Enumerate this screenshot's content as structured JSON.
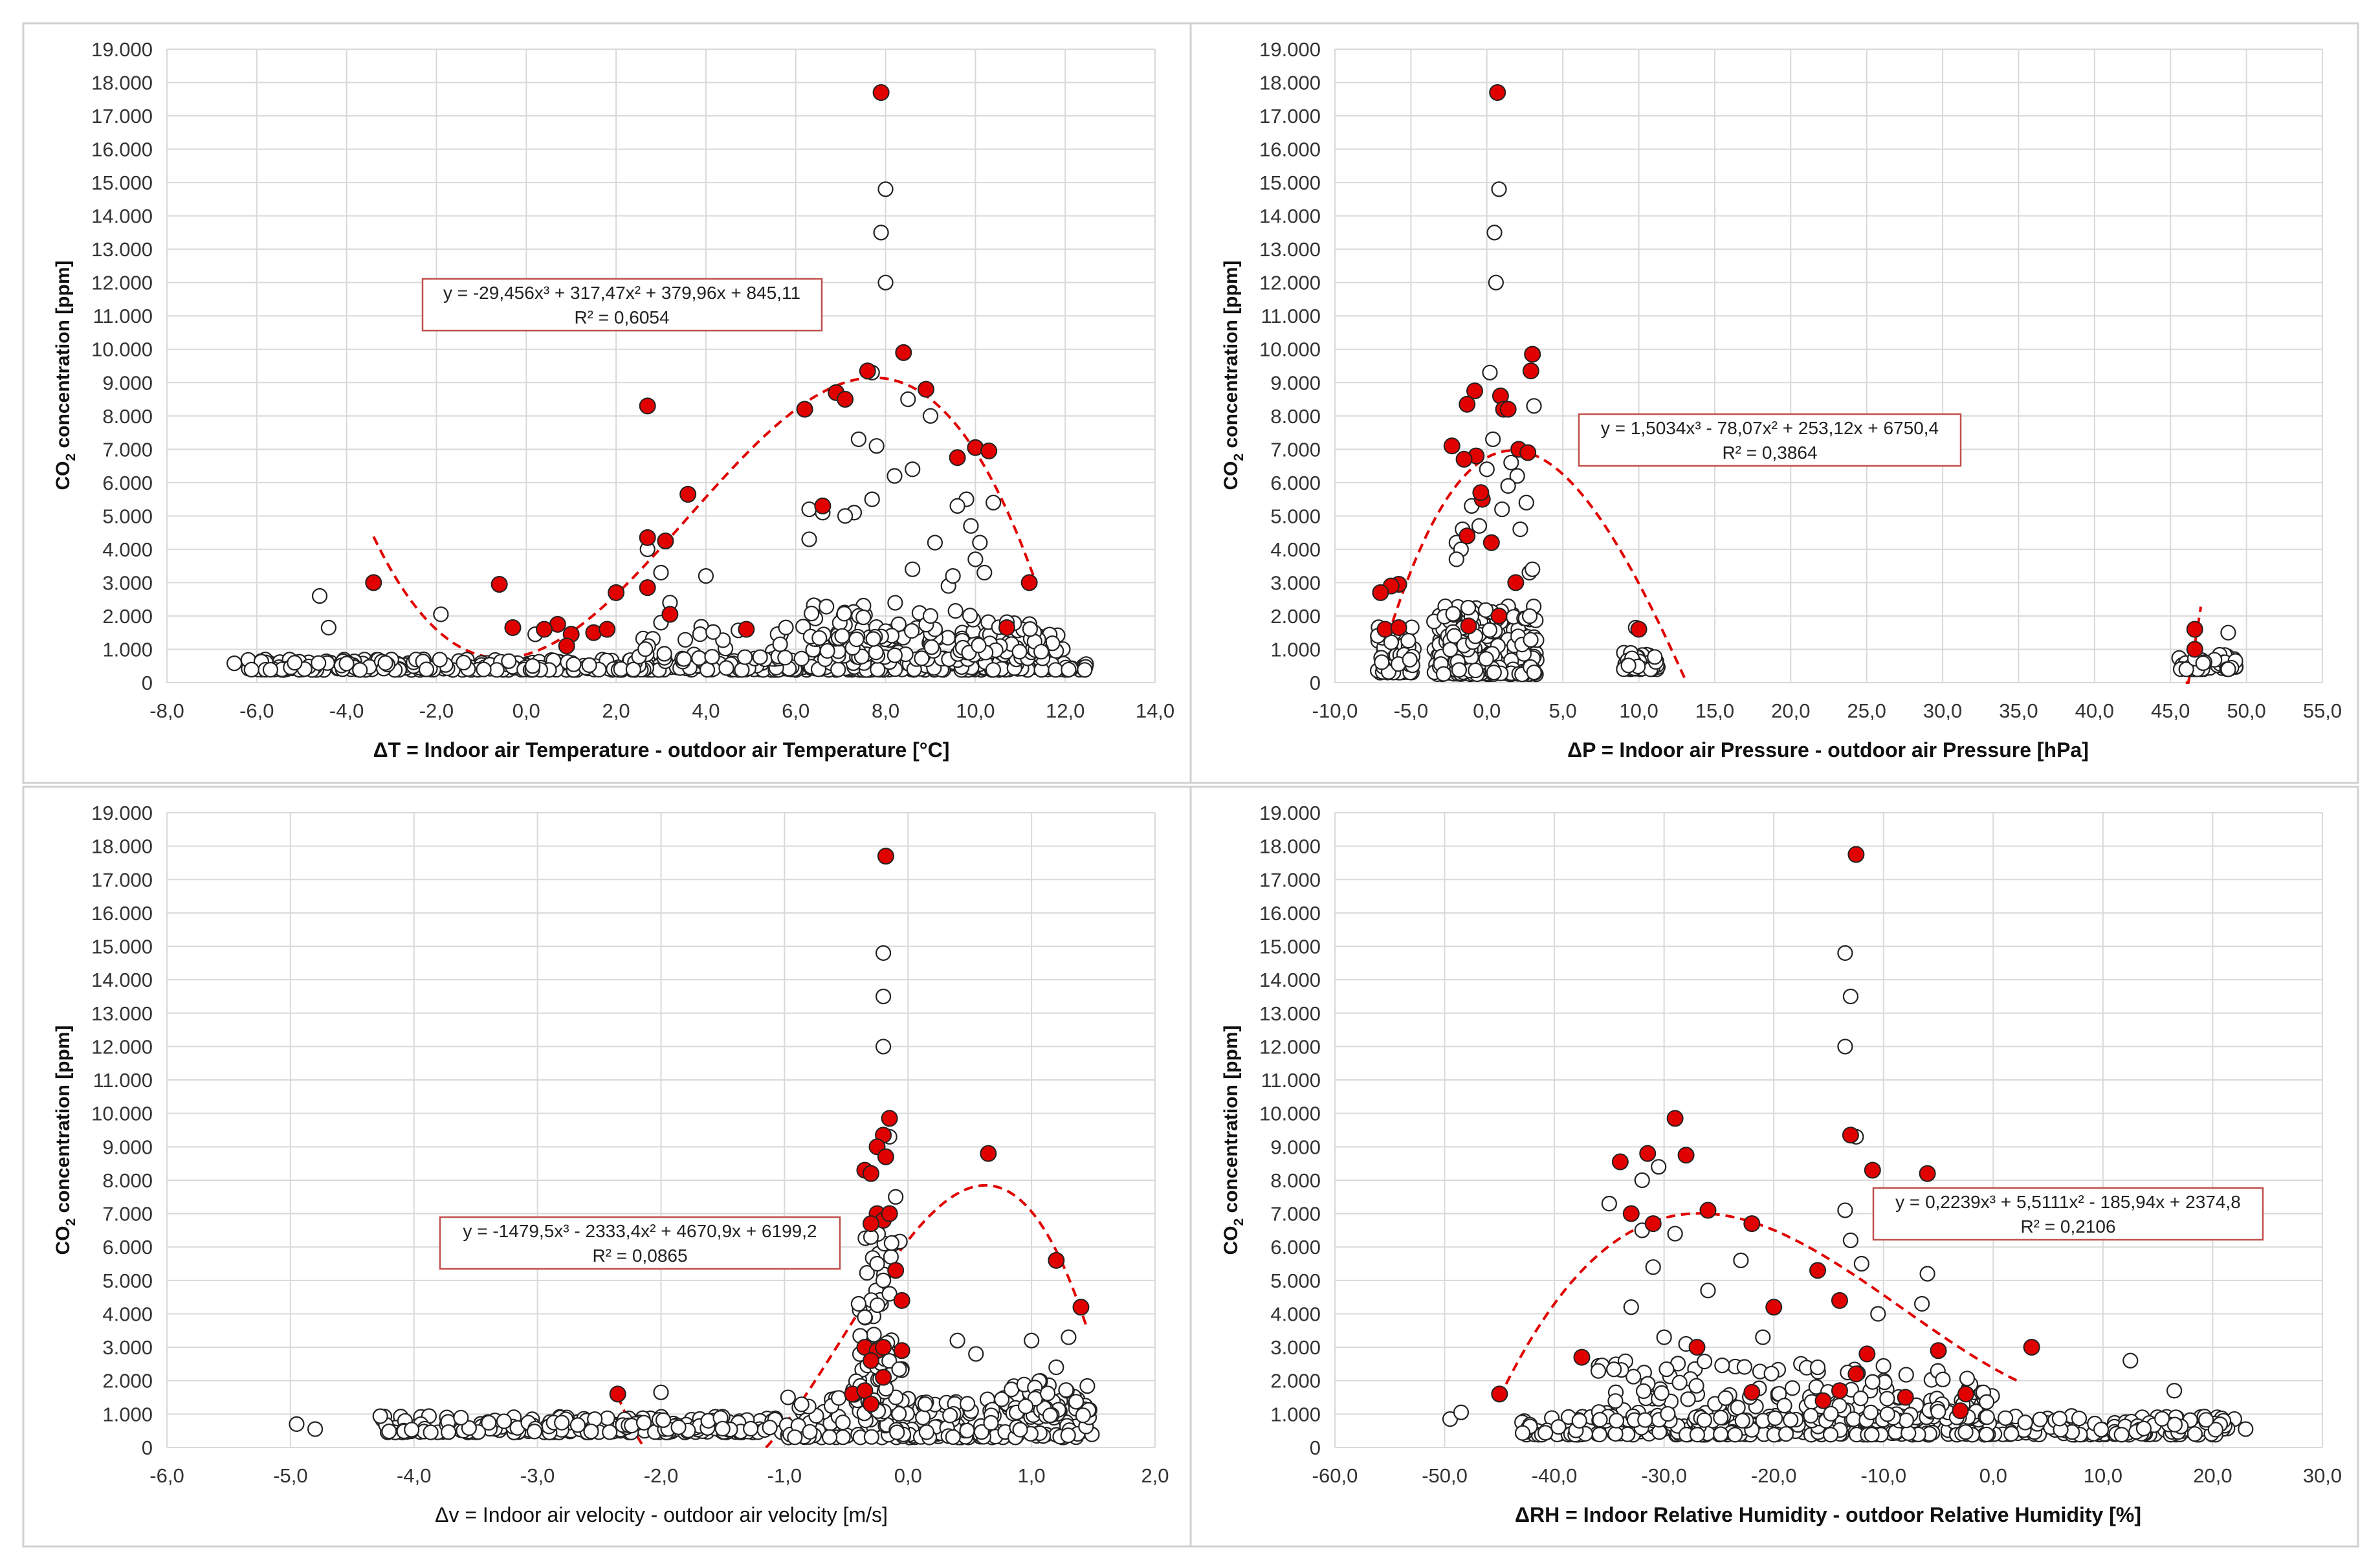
{
  "figure": {
    "colors": {
      "highlight": "#e00000",
      "trend": "#e00000",
      "marker_open_fill": "#ffffff",
      "marker_outline": "#222222",
      "grid": "#d9d9d9",
      "frame": "#d0d0d0",
      "equation_border": "#c0504d"
    }
  },
  "chart_data": [
    {
      "type": "scatter",
      "id": "temp",
      "ylabel": "CO2 concentration [ppm]",
      "ylabel_main": "CO",
      "ylabel_sub": "2",
      "ylabel_rest": " concentration [ppm]",
      "xlabel": "ΔT = Indoor air Temperature - outdoor air Temperature [°C]",
      "xlim": [
        -8,
        14
      ],
      "ylim": [
        0,
        19000
      ],
      "xticks": [
        -8,
        -6,
        -4,
        -2,
        0,
        2,
        4,
        6,
        8,
        10,
        12,
        14
      ],
      "xtick_labels": [
        "-8,0",
        "-6,0",
        "-4,0",
        "-2,0",
        "0,0",
        "2,0",
        "4,0",
        "6,0",
        "8,0",
        "10,0",
        "12,0",
        "14,0"
      ],
      "yticks": [
        0,
        1000,
        2000,
        3000,
        4000,
        5000,
        6000,
        7000,
        8000,
        9000,
        10000,
        11000,
        12000,
        13000,
        14000,
        15000,
        16000,
        17000,
        18000,
        19000
      ],
      "ytick_labels": [
        "0",
        "1.000",
        "2.000",
        "3.000",
        "4.000",
        "5.000",
        "6.000",
        "7.000",
        "8.000",
        "9.000",
        "10.000",
        "11.000",
        "12.000",
        "13.000",
        "14.000",
        "15.000",
        "16.000",
        "17.000",
        "18.000",
        "19.000"
      ],
      "equation": "y = -29,456x³ + 317,47x² + 379,96x + 845,11",
      "r2": "R² = 0,6054",
      "trend": {
        "coeffs": [
          845.11,
          379.96,
          317.47,
          -29.456
        ],
        "x_range": [
          -3.4,
          11.3
        ]
      },
      "highlighted": {
        "x": [
          7.9,
          8.4,
          7.6,
          6.9,
          7.1,
          8.9,
          6.2,
          2.7,
          10.0,
          10.3,
          9.6,
          3.6,
          6.6,
          2.7,
          3.1,
          11.2,
          -3.4,
          -0.6,
          2.7,
          2.0,
          3.2,
          0.7,
          10.7,
          4.9,
          -0.3,
          0.4,
          1.0,
          0.9,
          1.5,
          1.8
        ],
        "y": [
          17700,
          9900,
          9350,
          8700,
          8500,
          8800,
          8200,
          8300,
          7050,
          6950,
          6750,
          5650,
          5300,
          4350,
          4250,
          3000,
          3000,
          2950,
          2850,
          2700,
          2050,
          1750,
          1650,
          1600,
          1650,
          1600,
          1450,
          1100,
          1500,
          1600
        ]
      },
      "outliers": {
        "x": [
          8.0,
          7.9,
          8.0,
          7.7,
          8.5,
          8.6,
          7.4,
          7.8,
          9.0,
          6.3,
          6.6,
          7.3,
          7.1,
          8.6,
          8.2,
          7.7,
          6.3,
          9.8,
          9.9,
          10.1,
          10.4,
          9.6,
          9.1,
          10.0,
          10.2,
          9.4,
          9.5,
          3.0,
          4.0,
          2.7,
          -4.6,
          -4.4,
          -1.9,
          3.2,
          3.0,
          0.2,
          9.0
        ],
        "y": [
          14800,
          13500,
          12000,
          9300,
          8500,
          6400,
          7300,
          7100,
          8000,
          5200,
          5100,
          5100,
          5000,
          3400,
          6200,
          5500,
          4300,
          5500,
          4700,
          4200,
          5400,
          5300,
          4200,
          3700,
          3300,
          2900,
          3200,
          3300,
          3200,
          4000,
          2600,
          1650,
          2050,
          2400,
          1800,
          1450,
          2000
        ]
      },
      "clusters": [
        {
          "x_range": [
            -6.2,
            12.5
          ],
          "y_range": [
            380,
            700
          ],
          "count": 480
        },
        {
          "x_range": [
            2.5,
            12.0
          ],
          "y_range": [
            700,
            1700
          ],
          "count": 110
        },
        {
          "x_range": [
            6.0,
            9.0
          ],
          "y_range": [
            1300,
            2400
          ],
          "count": 50
        },
        {
          "x_range": [
            9.5,
            11.5
          ],
          "y_range": [
            900,
            2200
          ],
          "count": 40
        }
      ],
      "extra_points": {
        "x": [
          -6.5
        ],
        "y": [
          580
        ]
      }
    },
    {
      "type": "scatter",
      "id": "pressure",
      "ylabel": "CO2 concentration [ppm]",
      "ylabel_main": "CO",
      "ylabel_sub": "2",
      "ylabel_rest": " concentration [ppm]",
      "xlabel": "ΔP = Indoor air Pressure - outdoor air Pressure [hPa]",
      "xlim": [
        -10,
        55
      ],
      "ylim": [
        0,
        19000
      ],
      "xticks": [
        -10,
        -5,
        0,
        5,
        10,
        15,
        20,
        25,
        30,
        35,
        40,
        45,
        50,
        55
      ],
      "xtick_labels": [
        "-10,0",
        "-5,0",
        "0,0",
        "5,0",
        "10,0",
        "15,0",
        "20,0",
        "25,0",
        "30,0",
        "35,0",
        "40,0",
        "45,0",
        "50,0",
        "55,0"
      ],
      "yticks": [
        0,
        1000,
        2000,
        3000,
        4000,
        5000,
        6000,
        7000,
        8000,
        9000,
        10000,
        11000,
        12000,
        13000,
        14000,
        15000,
        16000,
        17000,
        18000,
        19000
      ],
      "ytick_labels": [
        "0",
        "1.000",
        "2.000",
        "3.000",
        "4.000",
        "5.000",
        "6.000",
        "7.000",
        "8.000",
        "9.000",
        "10.000",
        "11.000",
        "12.000",
        "13.000",
        "14.000",
        "15.000",
        "16.000",
        "17.000",
        "18.000",
        "19.000"
      ],
      "equation": "y = 1,5034x³ - 78,07x² + 253,12x + 6750,4",
      "r2": "R² = 0,3864",
      "trend": {
        "coeffs": [
          6750.4,
          253.12,
          -78.07,
          1.5034
        ],
        "x_range": [
          -6.2,
          13.0
        ],
        "extra_segment": [
          46.0,
          47.0
        ]
      },
      "highlighted": {
        "x": [
          0.7,
          3.0,
          2.9,
          -0.8,
          0.9,
          1.1,
          -1.3,
          1.4,
          -0.7,
          2.1,
          -2.3,
          -1.5,
          2.7,
          -0.3,
          -0.4,
          0.3,
          -1.3,
          1.9,
          -5.8,
          -6.3,
          -7.0,
          -1.2,
          -6.7,
          -5.8,
          0.8,
          10.0,
          46.6,
          46.6
        ],
        "y": [
          17700,
          9850,
          9350,
          8750,
          8600,
          8200,
          8350,
          8200,
          6800,
          7000,
          7100,
          6700,
          6900,
          5500,
          5700,
          4200,
          4400,
          3000,
          2950,
          2900,
          2700,
          1700,
          1600,
          1650,
          2000,
          1600,
          1600,
          1000
        ]
      },
      "outliers": {
        "x": [
          0.8,
          0.5,
          0.6,
          0.2,
          3.1,
          1.6,
          -1.6,
          -2.0,
          -1.7,
          -1.0,
          0.0,
          1.0,
          2.0,
          2.6,
          0.4,
          1.4,
          2.2,
          2.8,
          3.0,
          -0.5,
          -2.0,
          9.8,
          48.8
        ],
        "y": [
          14800,
          13500,
          12000,
          9300,
          8300,
          6600,
          4600,
          4200,
          4000,
          5300,
          6400,
          5200,
          6200,
          5400,
          7300,
          5900,
          4600,
          3300,
          3400,
          4700,
          3700,
          1650,
          1500
        ]
      },
      "clusters": [
        {
          "x_range": [
            -7.2,
            -4.8
          ],
          "y_range": [
            300,
            1800
          ],
          "count": 60
        },
        {
          "x_range": [
            -3.5,
            3.3
          ],
          "y_range": [
            250,
            2300
          ],
          "count": 260
        },
        {
          "x_range": [
            9.0,
            11.5
          ],
          "y_range": [
            400,
            900
          ],
          "count": 45
        },
        {
          "x_range": [
            45.5,
            49.3
          ],
          "y_range": [
            400,
            850
          ],
          "count": 55
        }
      ],
      "extra_points": {
        "x": [],
        "y": []
      }
    },
    {
      "type": "scatter",
      "id": "velocity",
      "ylabel": "CO2 concentration [ppm]",
      "ylabel_main": "CO",
      "ylabel_sub": "2",
      "ylabel_rest": " concentration [ppm]",
      "xlabel": "Δv = Indoor air velocity - outdoor air velocity [m/s]",
      "xlim": [
        -6,
        2
      ],
      "ylim": [
        0,
        19000
      ],
      "xticks": [
        -6,
        -5,
        -4,
        -3,
        -2,
        -1,
        0,
        1,
        2
      ],
      "xtick_labels": [
        "-6,0",
        "-5,0",
        "-4,0",
        "-3,0",
        "-2,0",
        "-1,0",
        "0,0",
        "1,0",
        "2,0"
      ],
      "yticks": [
        0,
        1000,
        2000,
        3000,
        4000,
        5000,
        6000,
        7000,
        8000,
        9000,
        10000,
        11000,
        12000,
        13000,
        14000,
        15000,
        16000,
        17000,
        18000,
        19000
      ],
      "ytick_labels": [
        "0",
        "1.000",
        "2.000",
        "3.000",
        "4.000",
        "5.000",
        "6.000",
        "7.000",
        "8.000",
        "9.000",
        "10.000",
        "11.000",
        "12.000",
        "13.000",
        "14.000",
        "15.000",
        "16.000",
        "17.000",
        "18.000",
        "19.000"
      ],
      "equation": "y = -1479,5x³ - 2333,4x² + 4670,9x + 6199,2",
      "r2": "R² = 0,0865",
      "trend": {
        "coeffs": [
          6199.2,
          4670.9,
          -2333.4,
          -1479.5
        ],
        "x_range": [
          -1.15,
          1.45
        ],
        "extra_segment": [
          -2.35,
          -2.15
        ]
      },
      "highlighted": {
        "x": [
          -0.18,
          -0.15,
          -0.2,
          -0.25,
          -0.18,
          -0.35,
          -0.3,
          0.65,
          -0.25,
          -0.2,
          -0.15,
          -0.3,
          -0.1,
          1.2,
          -0.05,
          1.4,
          -0.35,
          -0.25,
          -0.2,
          -0.05,
          -0.3,
          -0.2,
          -0.45,
          -0.35,
          -2.35,
          -0.3
        ],
        "y": [
          17700,
          9850,
          9350,
          9000,
          8700,
          8300,
          8200,
          8800,
          7000,
          6800,
          7000,
          6700,
          5300,
          5600,
          4400,
          4200,
          3000,
          2900,
          3000,
          2900,
          2600,
          2100,
          1600,
          1700,
          1600,
          1300
        ]
      },
      "outliers": {
        "x": [
          -0.2,
          -0.2,
          -0.2,
          -0.15,
          -0.1,
          -0.3,
          -0.25,
          -0.2,
          -0.15,
          -0.4,
          -0.35,
          0.4,
          0.55,
          1.0,
          1.3,
          1.2,
          -2.0,
          -4.95,
          -4.8
        ],
        "y": [
          14800,
          13500,
          12000,
          9300,
          7500,
          6300,
          5500,
          5000,
          4600,
          4300,
          3900,
          3200,
          2800,
          3200,
          3300,
          2400,
          1650,
          700,
          550
        ]
      },
      "clusters": [
        {
          "x_range": [
            -4.3,
            -1.0
          ],
          "y_range": [
            450,
            950
          ],
          "count": 230
        },
        {
          "x_range": [
            -1.0,
            1.5
          ],
          "y_range": [
            300,
            1500
          ],
          "count": 210
        },
        {
          "x_range": [
            -0.45,
            -0.05
          ],
          "y_range": [
            1000,
            6800
          ],
          "count": 70
        },
        {
          "x_range": [
            0.8,
            1.5
          ],
          "y_range": [
            900,
            2000
          ],
          "count": 40
        }
      ],
      "extra_points": {
        "x": [],
        "y": []
      }
    },
    {
      "type": "scatter",
      "id": "humidity",
      "ylabel": "CO2 concentration [ppm]",
      "ylabel_main": "CO",
      "ylabel_sub": "2",
      "ylabel_rest": " concentration [ppm]",
      "xlabel": "ΔRH = Indoor Relative Humidity - outdoor Relative Humidity  [%]",
      "xlim": [
        -60,
        30
      ],
      "ylim": [
        0,
        19000
      ],
      "xticks": [
        -60,
        -50,
        -40,
        -30,
        -20,
        -10,
        0,
        10,
        20,
        30
      ],
      "xtick_labels": [
        "-60,0",
        "-50,0",
        "-40,0",
        "-30,0",
        "-20,0",
        "-10,0",
        "0,0",
        "10,0",
        "20,0",
        "30,0"
      ],
      "yticks": [
        0,
        1000,
        2000,
        3000,
        4000,
        5000,
        6000,
        7000,
        8000,
        9000,
        10000,
        11000,
        12000,
        13000,
        14000,
        15000,
        16000,
        17000,
        18000,
        19000
      ],
      "ytick_labels": [
        "0",
        "1.000",
        "2.000",
        "3.000",
        "4.000",
        "5.000",
        "6.000",
        "7.000",
        "8.000",
        "9.000",
        "10.000",
        "11.000",
        "12.000",
        "13.000",
        "14.000",
        "15.000",
        "16.000",
        "17.000",
        "18.000",
        "19.000"
      ],
      "equation": "y = 0,2239x³ + 5,5111x² - 185,94x + 2374,8",
      "r2": "R² = 0,2106",
      "trend": {
        "coeffs": [
          2374.8,
          -185.94,
          5.5111,
          0.2239
        ],
        "x_range": [
          -45.0,
          2.5
        ]
      },
      "highlighted": {
        "x": [
          -12.5,
          -29.0,
          -13.0,
          -31.5,
          -28.0,
          -34.0,
          -11.0,
          -6.0,
          -26.0,
          -33.0,
          -31.0,
          -22.0,
          -16.0,
          -14.0,
          -20.0,
          -37.5,
          -27.0,
          -5.0,
          3.5,
          -11.5,
          -12.5,
          -22.0,
          -8.0,
          -2.5,
          -3.0,
          -45.0,
          -14.0,
          -15.5
        ],
        "y": [
          17750,
          9850,
          9350,
          8800,
          8750,
          8550,
          8300,
          8200,
          7100,
          7000,
          6700,
          6700,
          5300,
          4400,
          4200,
          2700,
          3000,
          2900,
          3000,
          2800,
          2200,
          1650,
          1500,
          1600,
          1100,
          1600,
          1700,
          1400
        ]
      },
      "outliers": {
        "x": [
          -13.5,
          -13.0,
          -13.5,
          -12.5,
          -30.5,
          -32.0,
          -35.0,
          -29.0,
          -31.0,
          -33.0,
          -30.0,
          -28.0,
          -26.0,
          -21.0,
          -13.5,
          -13.0,
          -12.0,
          -10.5,
          -6.0,
          -6.5,
          -16.0,
          -23.0,
          -32.0,
          12.5,
          16.5,
          -49.5,
          -48.5
        ],
        "y": [
          14800,
          13500,
          12000,
          9300,
          8400,
          8000,
          7300,
          6400,
          5400,
          4200,
          3300,
          3100,
          4700,
          3300,
          7100,
          6200,
          5500,
          4000,
          5200,
          4300,
          2400,
          5600,
          6500,
          2600,
          1700,
          850,
          1050
        ]
      },
      "clusters": [
        {
          "x_range": [
            -43.0,
            22.0
          ],
          "y_range": [
            380,
            950
          ],
          "count": 420
        },
        {
          "x_range": [
            -36.0,
            -5.0
          ],
          "y_range": [
            800,
            2600
          ],
          "count": 150
        },
        {
          "x_range": [
            -6.0,
            0.0
          ],
          "y_range": [
            900,
            2200
          ],
          "count": 35
        }
      ],
      "extra_points": {
        "x": [
          23.0
        ],
        "y": [
          550
        ]
      }
    }
  ]
}
